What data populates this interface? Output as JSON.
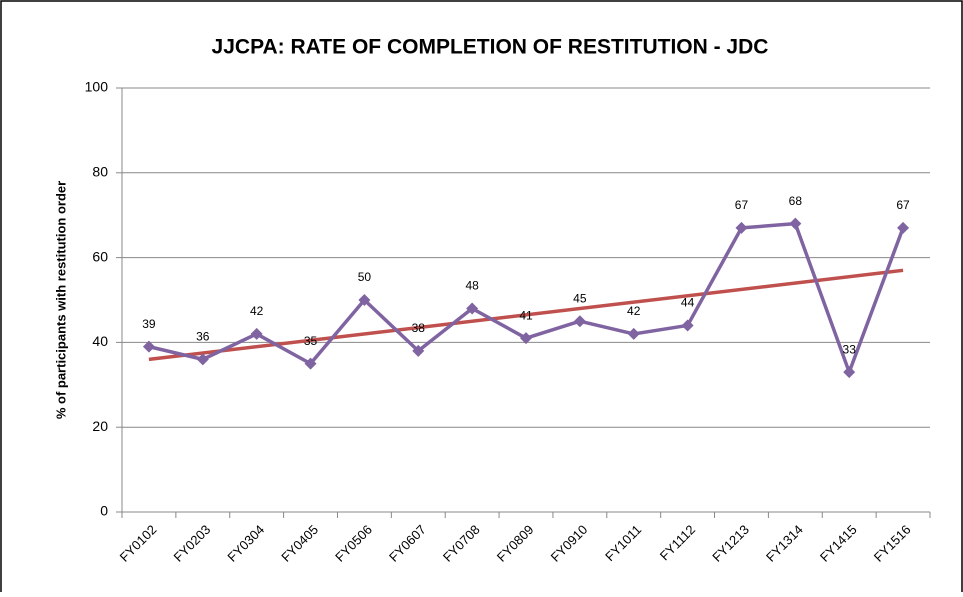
{
  "chart_data": {
    "type": "line",
    "title": "JJCPA: RATE OF COMPLETION  OF RESTITUTION - JDC",
    "y_label": "% of participants with restitution order",
    "categories": [
      "FY0102",
      "FY0203",
      "FY0304",
      "FY0405",
      "FY0506",
      "FY0607",
      "FY0708",
      "FY0809",
      "FY0910",
      "FY1011",
      "FY1112",
      "FY1213",
      "FY1314",
      "FY1415",
      "FY1516"
    ],
    "series": [
      {
        "color": "#8064a2",
        "values": [
          39,
          36,
          42,
          35,
          50,
          38,
          48,
          41,
          45,
          42,
          44,
          67,
          68,
          33,
          67
        ]
      }
    ],
    "trendline": {
      "color": "#c0504d",
      "x": [
        "FY0102",
        "FY1516"
      ],
      "values": [
        36,
        57
      ]
    },
    "ylim": [
      0,
      100
    ],
    "yticks": [
      0,
      20,
      40,
      60,
      80,
      100
    ],
    "grid": true
  }
}
